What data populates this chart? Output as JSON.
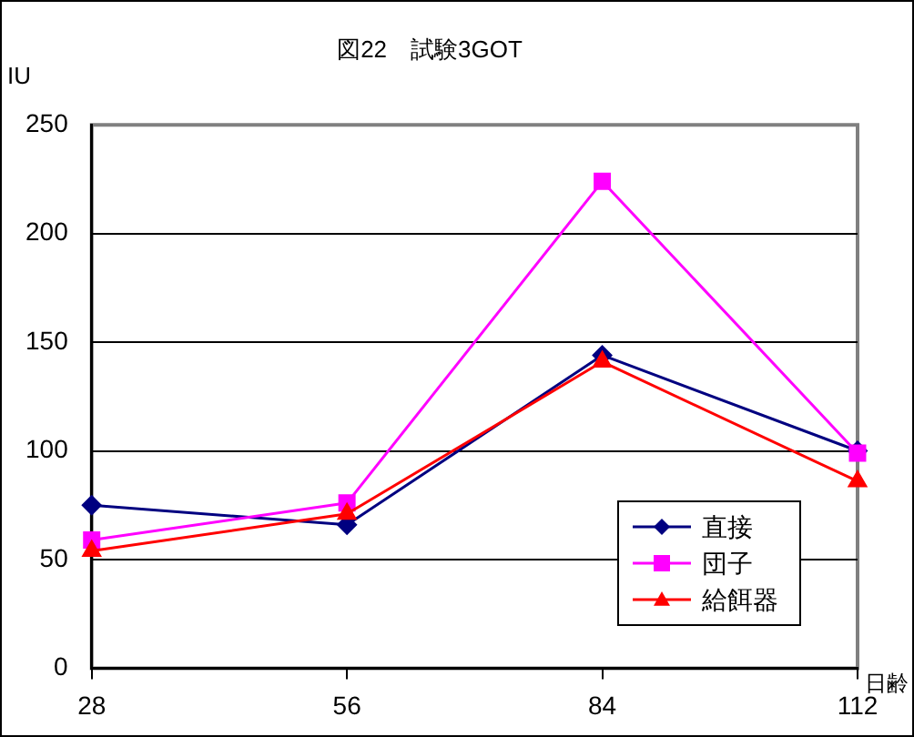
{
  "chart_data": {
    "type": "line",
    "title": "図22　試験3GOT",
    "xlabel": "日齢",
    "ylabel": "IU",
    "categories": [
      "28",
      "56",
      "84",
      "112"
    ],
    "series": [
      {
        "name": "直接",
        "color": "#000080",
        "marker": "diamond",
        "values": [
          75,
          66,
          144,
          100
        ]
      },
      {
        "name": "団子",
        "color": "#ff00ff",
        "marker": "square",
        "values": [
          59,
          76,
          224,
          99
        ]
      },
      {
        "name": "給餌器",
        "color": "#ff0000",
        "marker": "triangle",
        "values": [
          54,
          71,
          141,
          86
        ]
      }
    ],
    "ylim": [
      0,
      250
    ],
    "yticks": [
      0,
      50,
      100,
      150,
      200,
      250
    ],
    "grid": "y",
    "legend": "bottom right"
  }
}
